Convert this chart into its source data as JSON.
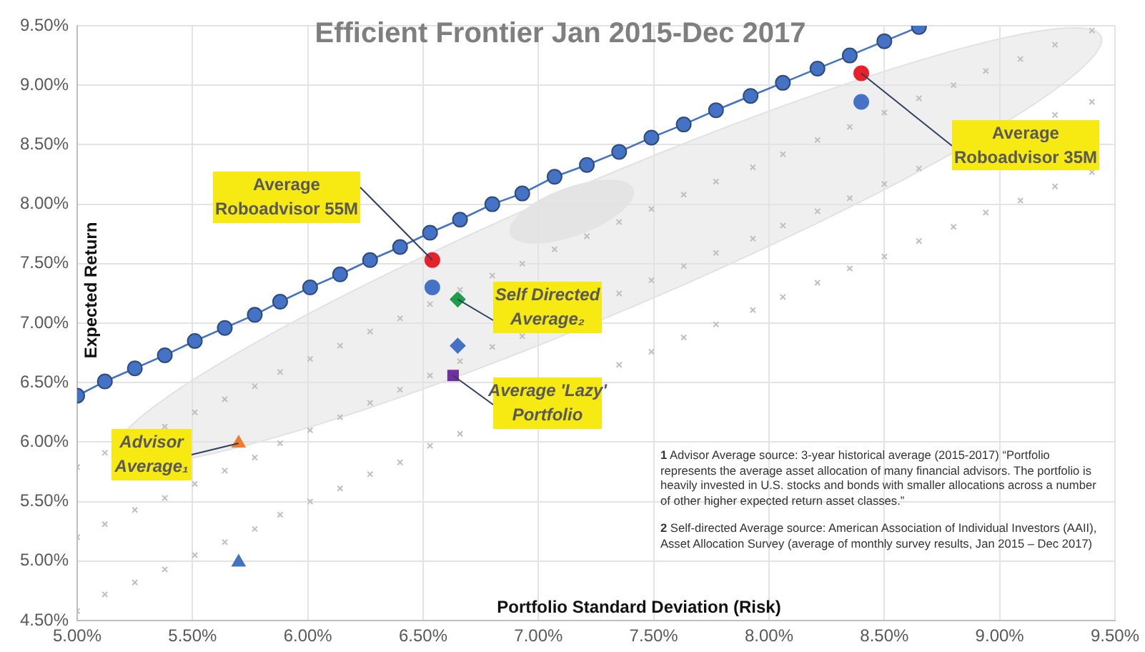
{
  "chart_data": {
    "type": "scatter",
    "title": "Efficient Frontier Jan 2015-Dec 2017",
    "xlabel": "Portfolio Standard Deviation (Risk)",
    "ylabel": "Expected Return",
    "xlim": [
      5,
      9.5
    ],
    "ylim": [
      4.5,
      9.5
    ],
    "xticks": [
      {
        "value": 5,
        "label": "5.00%"
      },
      {
        "value": 5.5,
        "label": "5.50%"
      },
      {
        "value": 6,
        "label": "6.00%"
      },
      {
        "value": 6.5,
        "label": "6.50%"
      },
      {
        "value": 7,
        "label": "7.00%"
      },
      {
        "value": 7.5,
        "label": "7.50%"
      },
      {
        "value": 8,
        "label": "8.00%"
      },
      {
        "value": 8.5,
        "label": "8.50%"
      },
      {
        "value": 9,
        "label": "9.00%"
      },
      {
        "value": 9.5,
        "label": "9.50%"
      }
    ],
    "yticks": [
      {
        "value": 4.5,
        "label": "4.50%"
      },
      {
        "value": 5,
        "label": "5.00%"
      },
      {
        "value": 5.5,
        "label": "5.50%"
      },
      {
        "value": 6,
        "label": "6.00%"
      },
      {
        "value": 6.5,
        "label": "6.50%"
      },
      {
        "value": 7,
        "label": "7.00%"
      },
      {
        "value": 7.5,
        "label": "7.50%"
      },
      {
        "value": 8,
        "label": "8.00%"
      },
      {
        "value": 8.5,
        "label": "8.50%"
      },
      {
        "value": 9,
        "label": "9.00%"
      },
      {
        "value": 9.5,
        "label": "9.50%"
      }
    ],
    "grid": true,
    "legend": false,
    "series": [
      {
        "type": "scatter",
        "marker": "cross",
        "color": "#bfbfbf",
        "x": [
          5.0,
          5.12,
          5.38,
          5.51,
          5.64,
          5.77,
          5.88,
          6.01,
          6.14,
          6.27,
          6.4,
          6.53,
          6.66,
          6.8,
          6.93,
          7.07,
          7.21,
          7.35,
          7.49,
          7.63,
          7.77,
          7.93,
          8.06,
          8.21,
          8.35,
          8.5,
          8.65,
          8.8,
          8.94,
          9.09,
          9.24,
          9.4
        ],
        "values": [
          5.79,
          5.91,
          6.13,
          6.25,
          6.36,
          6.47,
          6.59,
          6.7,
          6.81,
          6.93,
          7.04,
          7.16,
          7.28,
          7.4,
          7.5,
          7.62,
          7.73,
          7.85,
          7.96,
          8.08,
          8.19,
          8.31,
          8.42,
          8.54,
          8.65,
          8.77,
          8.89,
          9.0,
          9.12,
          9.22,
          9.34,
          9.46
        ]
      },
      {
        "type": "scatter",
        "marker": "cross",
        "color": "#bfbfbf",
        "x": [
          5.0,
          5.12,
          5.25,
          5.38,
          5.51,
          5.64,
          5.77,
          5.88,
          6.01,
          6.14,
          6.27,
          6.4,
          6.53,
          6.66,
          6.8,
          6.93,
          7.35,
          7.49,
          7.63,
          7.77,
          7.93,
          8.06,
          8.21,
          8.35,
          8.5,
          8.65,
          9.24,
          9.4
        ],
        "values": [
          5.2,
          5.31,
          5.43,
          5.53,
          5.65,
          5.76,
          5.87,
          5.99,
          6.1,
          6.21,
          6.33,
          6.44,
          6.56,
          6.68,
          6.8,
          6.89,
          7.25,
          7.36,
          7.48,
          7.59,
          7.71,
          7.82,
          7.94,
          8.05,
          8.17,
          8.3,
          8.75,
          8.86
        ]
      },
      {
        "type": "scatter",
        "marker": "cross",
        "color": "#bfbfbf",
        "x": [
          5.0,
          5.12,
          5.25,
          5.38,
          5.51,
          5.64,
          5.77,
          5.88,
          6.01,
          6.14,
          6.27,
          6.4,
          6.53,
          6.66,
          7.35,
          7.49,
          7.63,
          7.77,
          7.93,
          8.06,
          8.21,
          8.35,
          8.5,
          8.65,
          8.8,
          8.94,
          9.09,
          9.24,
          9.4
        ],
        "values": [
          4.58,
          4.72,
          4.82,
          4.93,
          5.05,
          5.16,
          5.27,
          5.39,
          5.5,
          5.61,
          5.73,
          5.83,
          5.97,
          6.07,
          6.65,
          6.76,
          6.88,
          6.99,
          7.11,
          7.22,
          7.34,
          7.46,
          7.56,
          7.69,
          7.81,
          7.93,
          8.03,
          8.15,
          8.27
        ]
      },
      {
        "type": "line",
        "marker": "circle",
        "color": "#4472c4",
        "x": [
          5.0,
          5.12,
          5.25,
          5.38,
          5.51,
          5.64,
          5.77,
          5.88,
          6.01,
          6.14,
          6.27,
          6.4,
          6.53,
          6.66,
          6.8,
          6.93,
          7.07,
          7.21,
          7.35,
          7.49,
          7.63,
          7.77,
          7.92,
          8.06,
          8.21,
          8.35,
          8.5,
          8.65
        ],
        "values": [
          6.39,
          6.51,
          6.62,
          6.73,
          6.85,
          6.96,
          7.07,
          7.18,
          7.3,
          7.41,
          7.53,
          7.64,
          7.76,
          7.87,
          8.0,
          8.09,
          8.23,
          8.33,
          8.44,
          8.56,
          8.67,
          8.79,
          8.91,
          9.02,
          9.14,
          9.25,
          9.37,
          9.49
        ]
      },
      {
        "type": "scatter",
        "marker": "circle",
        "color": "#e8202a",
        "x": [
          6.54,
          8.4
        ],
        "values": [
          7.53,
          9.1
        ]
      },
      {
        "type": "scatter",
        "marker": "circle",
        "color": "#4472c4",
        "x": [
          6.54,
          8.4
        ],
        "values": [
          7.3,
          8.86
        ]
      },
      {
        "type": "scatter",
        "marker": "diamond",
        "color": "#1e9e48",
        "x": [
          6.65
        ],
        "values": [
          7.2
        ]
      },
      {
        "type": "scatter",
        "marker": "diamond",
        "color": "#4472c4",
        "x": [
          6.65
        ],
        "values": [
          6.81
        ]
      },
      {
        "type": "scatter",
        "marker": "square",
        "color": "#7030a0",
        "x": [
          6.63
        ],
        "values": [
          6.56
        ]
      },
      {
        "type": "scatter",
        "marker": "triangle",
        "color": "#ed7d31",
        "x": [
          5.7
        ],
        "values": [
          5.99
        ]
      },
      {
        "type": "scatter",
        "marker": "triangle",
        "color": "#4472c4",
        "x": [
          5.7
        ],
        "values": [
          4.99
        ]
      }
    ],
    "annotations": [
      {
        "text": "Average\nRoboadvisor 55M",
        "x": 6.54,
        "y": 7.53
      },
      {
        "text": "Self Directed\nAverage₂",
        "x": 6.65,
        "y": 7.2
      },
      {
        "text": "Average 'Lazy'\nPortfolio",
        "x": 6.63,
        "y": 6.56
      },
      {
        "text": "Advisor\nAverage₁",
        "x": 5.7,
        "y": 5.99
      },
      {
        "text": "Average\nRoboadvisor 35M",
        "x": 8.4,
        "y": 9.1
      },
      "1 Advisor Average source: 3-year historical average (2015-2017) “Portfolio represents the average asset allocation of many financial advisors. The portfolio is heavily invested in U.S. stocks and  bonds with smaller allocations across a number of other higher expected return asset classes.”",
      "2 Self-directed Average source: American Association of Individual Investors (AAII), Asset Allocation Survey (average of monthly survey results, Jan 2015 – Dec 2017)"
    ]
  }
}
